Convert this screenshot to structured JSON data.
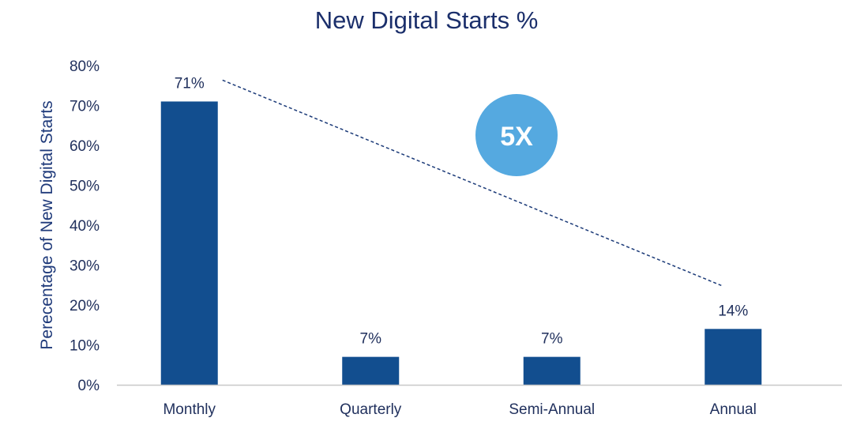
{
  "chart_data": {
    "type": "bar",
    "title": "New Digital Starts %",
    "ylabel": "Perecentage of New Digital Starts",
    "xlabel": "",
    "categories": [
      "Monthly",
      "Quarterly",
      "Semi-Annual",
      "Annual"
    ],
    "values": [
      71,
      7,
      7,
      14
    ],
    "data_labels": [
      "71%",
      "7%",
      "7%",
      "14%"
    ],
    "ylim": [
      0,
      80
    ],
    "yticks": [
      0,
      10,
      20,
      30,
      40,
      50,
      60,
      70,
      80
    ],
    "ytick_labels": [
      "0%",
      "10%",
      "20%",
      "30%",
      "40%",
      "50%",
      "60%",
      "70%",
      "80%"
    ],
    "grid": false,
    "bar_color": "#124e8f",
    "annotation": {
      "text": "5X",
      "color": "#55a9e0",
      "trend_line_from": "Monthly",
      "trend_line_to": "Annual",
      "trend_line_style": "dashed"
    }
  }
}
